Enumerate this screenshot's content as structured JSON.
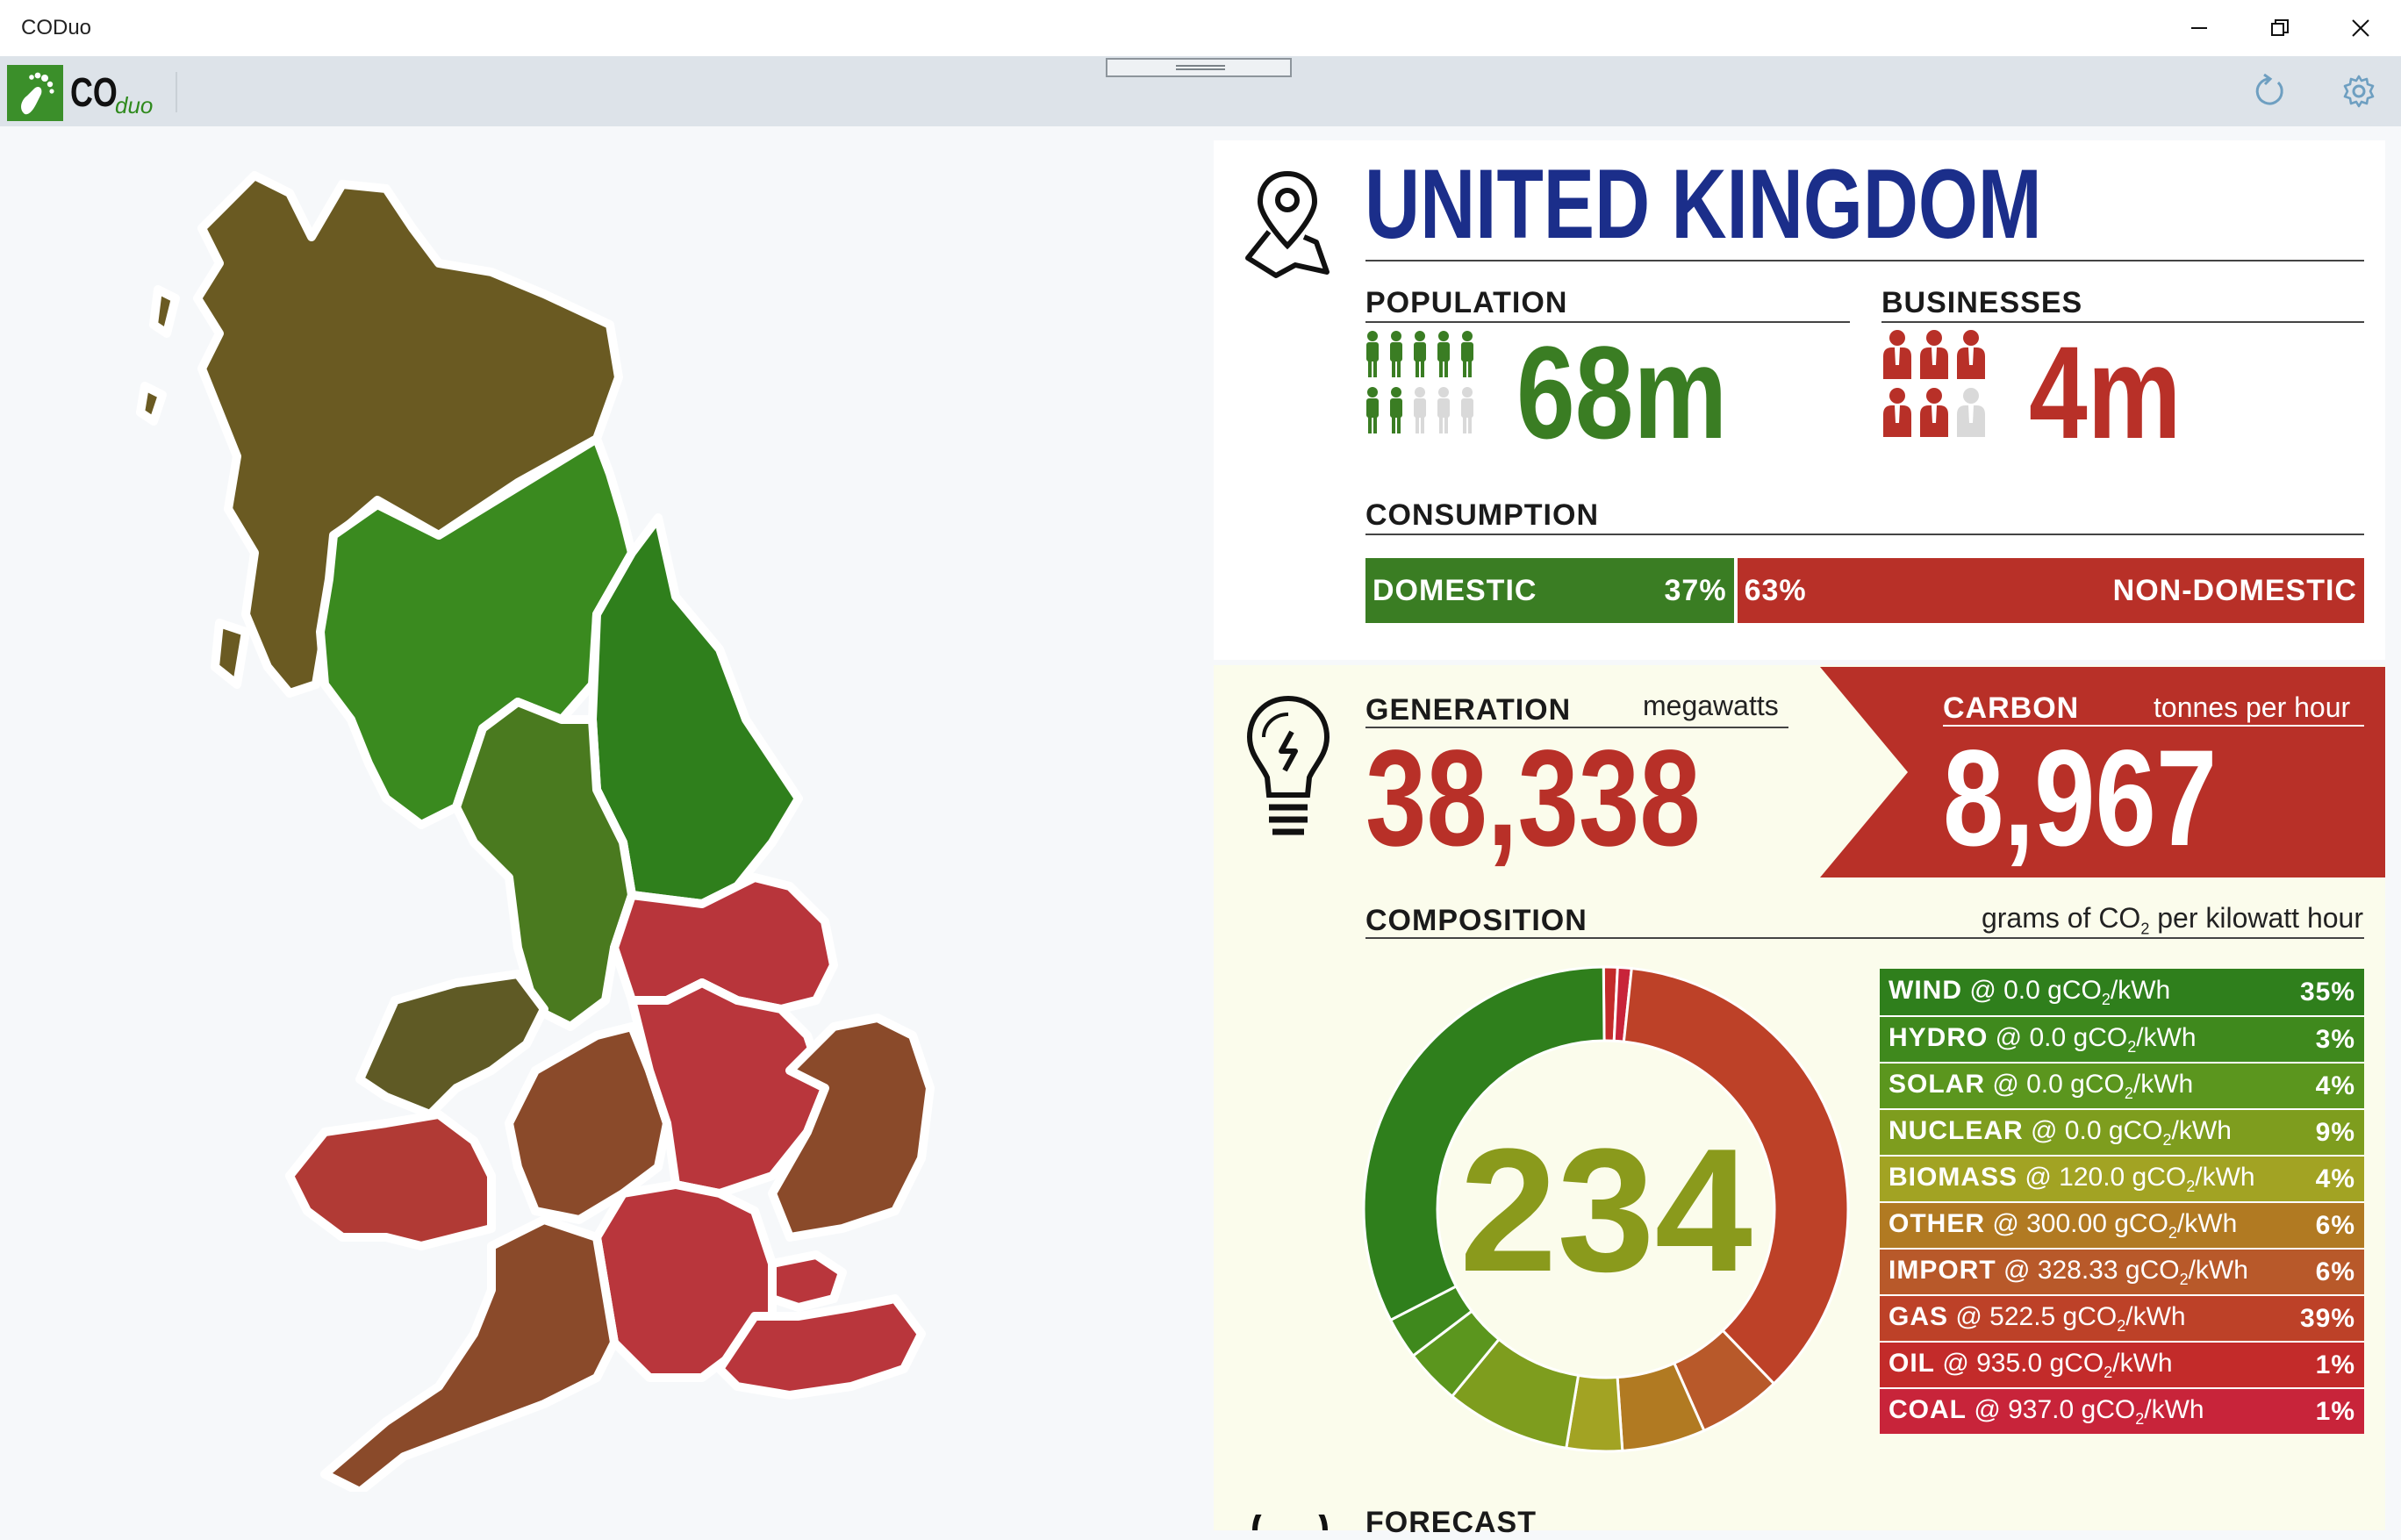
{
  "window": {
    "title": "CODuo"
  },
  "logo": {
    "main": "CO",
    "sub": "duo"
  },
  "country": {
    "name": "UNITED KINGDOM"
  },
  "population": {
    "label": "POPULATION",
    "value": "68m",
    "filled_fraction": 0.7
  },
  "businesses": {
    "label": "BUSINESSES",
    "value": "4m",
    "filled_fraction": 0.83
  },
  "consumption": {
    "label": "CONSUMPTION",
    "domestic_label": "DOMESTIC",
    "domestic_pct": "37%",
    "domestic_share": 37,
    "nondomestic_label": "NON-DOMESTIC",
    "nondomestic_pct": "63%",
    "nondomestic_share": 63
  },
  "generation": {
    "label": "GENERATION",
    "unit": "megawatts",
    "value": "38,338"
  },
  "carbon": {
    "label": "CARBON",
    "unit": "tonnes per hour",
    "value": "8,967"
  },
  "composition": {
    "label": "COMPOSITION",
    "unit_prefix": "grams of CO",
    "unit_sub": "2",
    "unit_suffix": " per kilowatt hour",
    "intensity": "234",
    "fuels": [
      {
        "name": "WIND",
        "rate": "@ 0.0 gCO",
        "unit_end": "/kWh",
        "pct": "35%",
        "share": 35,
        "color": "#2f7f1c"
      },
      {
        "name": "HYDRO",
        "rate": "@ 0.0 gCO",
        "unit_end": "/kWh",
        "pct": "3%",
        "share": 3,
        "color": "#3f891d"
      },
      {
        "name": "SOLAR",
        "rate": "@ 0.0 gCO",
        "unit_end": "/kWh",
        "pct": "4%",
        "share": 4,
        "color": "#5b961e"
      },
      {
        "name": "NUCLEAR",
        "rate": "@ 0.0 gCO",
        "unit_end": "/kWh",
        "pct": "9%",
        "share": 9,
        "color": "#7e9d1e"
      },
      {
        "name": "BIOMASS",
        "rate": "@ 120.0 gCO",
        "unit_end": "/kWh",
        "pct": "4%",
        "share": 4,
        "color": "#a2a323"
      },
      {
        "name": "OTHER",
        "rate": "@ 300.00 gCO",
        "unit_end": "/kWh",
        "pct": "6%",
        "share": 6,
        "color": "#b17a22"
      },
      {
        "name": "IMPORT",
        "rate": "@ 328.33 gCO",
        "unit_end": "/kWh",
        "pct": "6%",
        "share": 6,
        "color": "#b8592a"
      },
      {
        "name": "GAS",
        "rate": "@ 522.5 gCO",
        "unit_end": "/kWh",
        "pct": "39%",
        "share": 39,
        "color": "#bd4128"
      },
      {
        "name": "OIL",
        "rate": "@ 935.0 gCO",
        "unit_end": "/kWh",
        "pct": "1%",
        "share": 1,
        "color": "#c32b2a"
      },
      {
        "name": "COAL",
        "rate": "@ 937.0 gCO",
        "unit_end": "/kWh",
        "pct": "1%",
        "share": 1,
        "color": "#c8243a"
      }
    ]
  },
  "forecast": {
    "label": "FORECAST"
  },
  "colors": {
    "brand_blue": "#1b2e8a",
    "green": "#3a7d23",
    "red": "#b83028",
    "olive": "#8a9a1c"
  }
}
